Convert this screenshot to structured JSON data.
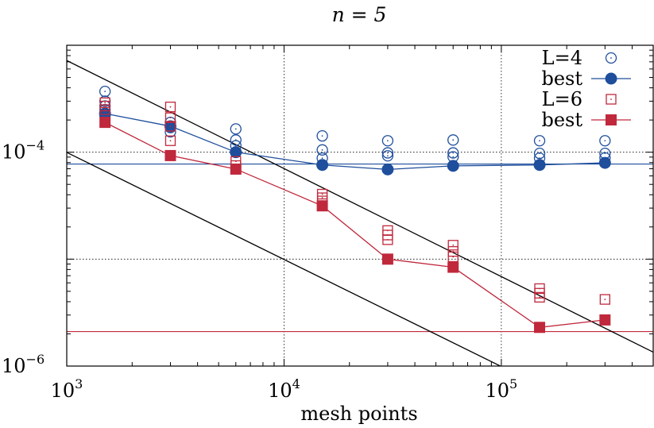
{
  "chart_data": {
    "type": "scatter",
    "title": "n = 5",
    "xlabel": "mesh points",
    "ylabel": "",
    "xscale": "log",
    "yscale": "log",
    "xlim": [
      1000,
      500000
    ],
    "ylim": [
      1e-06,
      0.001
    ],
    "xticks": [
      {
        "value": 1000,
        "base": "10",
        "exp": "3"
      },
      {
        "value": 10000,
        "base": "10",
        "exp": "4"
      },
      {
        "value": 100000,
        "base": "10",
        "exp": "5"
      }
    ],
    "yticks": [
      {
        "value": 1e-06,
        "base": "10",
        "exp": "−6"
      },
      {
        "value": 0.0001,
        "base": "10",
        "exp": "−4"
      }
    ],
    "grid": "dotted, major decades",
    "legend_position": "top-right",
    "series": [
      {
        "name": "L=4",
        "kind": "points",
        "marker": "circle-open",
        "color": "#1f4e9c",
        "points": [
          {
            "x": 1500,
            "y": 0.00037
          },
          {
            "x": 1500,
            "y": 0.0003
          },
          {
            "x": 1500,
            "y": 0.00027
          },
          {
            "x": 1500,
            "y": 0.00025
          },
          {
            "x": 1500,
            "y": 0.00022
          },
          {
            "x": 3000,
            "y": 0.00019
          },
          {
            "x": 3000,
            "y": 0.00017
          },
          {
            "x": 3000,
            "y": 0.000155
          },
          {
            "x": 6000,
            "y": 0.000165
          },
          {
            "x": 6000,
            "y": 0.00013
          },
          {
            "x": 6000,
            "y": 0.000115
          },
          {
            "x": 15000,
            "y": 0.000142
          },
          {
            "x": 15000,
            "y": 0.000105
          },
          {
            "x": 15000,
            "y": 8.8e-05
          },
          {
            "x": 30000,
            "y": 0.000128
          },
          {
            "x": 30000,
            "y": 9.85e-05
          },
          {
            "x": 30000,
            "y": 9.25e-05
          },
          {
            "x": 60000,
            "y": 0.00013
          },
          {
            "x": 60000,
            "y": 9.85e-05
          },
          {
            "x": 60000,
            "y": 9.05e-05
          },
          {
            "x": 150000,
            "y": 0.000128
          },
          {
            "x": 150000,
            "y": 9.75e-05
          },
          {
            "x": 150000,
            "y": 8.8e-05
          },
          {
            "x": 300000,
            "y": 0.000128
          },
          {
            "x": 300000,
            "y": 9.75e-05
          },
          {
            "x": 300000,
            "y": 8.85e-05
          }
        ]
      },
      {
        "name": "best",
        "kind": "line-marker",
        "marker": "circle-filled",
        "color": "#1f4e9c",
        "points": [
          {
            "x": 1500,
            "y": 0.00023
          },
          {
            "x": 3000,
            "y": 0.000175
          },
          {
            "x": 6000,
            "y": 0.0001
          },
          {
            "x": 15000,
            "y": 7.6e-05
          },
          {
            "x": 30000,
            "y": 6.9e-05
          },
          {
            "x": 60000,
            "y": 7.45e-05
          },
          {
            "x": 150000,
            "y": 7.6e-05
          },
          {
            "x": 300000,
            "y": 7.95e-05
          }
        ]
      },
      {
        "name": "L=6",
        "kind": "points",
        "marker": "square-open",
        "color": "#c0283c",
        "points": [
          {
            "x": 1500,
            "y": 0.00029
          },
          {
            "x": 1500,
            "y": 0.00027
          },
          {
            "x": 1500,
            "y": 0.00025
          },
          {
            "x": 3000,
            "y": 0.000265
          },
          {
            "x": 3000,
            "y": 0.00021
          },
          {
            "x": 3000,
            "y": 0.000175
          },
          {
            "x": 3000,
            "y": 0.000128
          },
          {
            "x": 6000,
            "y": 8.2e-05
          },
          {
            "x": 6000,
            "y": 7.5e-05
          },
          {
            "x": 15000,
            "y": 4.05e-05
          },
          {
            "x": 15000,
            "y": 3.75e-05
          },
          {
            "x": 15000,
            "y": 3.5e-05
          },
          {
            "x": 30000,
            "y": 1.85e-05
          },
          {
            "x": 30000,
            "y": 1.68e-05
          },
          {
            "x": 30000,
            "y": 1.52e-05
          },
          {
            "x": 60000,
            "y": 1.35e-05
          },
          {
            "x": 60000,
            "y": 1.18e-05
          },
          {
            "x": 60000,
            "y": 1.05e-05
          },
          {
            "x": 150000,
            "y": 5.3e-06
          },
          {
            "x": 150000,
            "y": 4.8e-06
          },
          {
            "x": 150000,
            "y": 4.4e-06
          },
          {
            "x": 300000,
            "y": 4.2e-06
          }
        ]
      },
      {
        "name": "best",
        "kind": "line-marker",
        "marker": "square-filled",
        "color": "#c0283c",
        "points": [
          {
            "x": 1500,
            "y": 0.00019
          },
          {
            "x": 3000,
            "y": 9.3e-05
          },
          {
            "x": 6000,
            "y": 6.95e-05
          },
          {
            "x": 15000,
            "y": 3.15e-05
          },
          {
            "x": 30000,
            "y": 1e-05
          },
          {
            "x": 60000,
            "y": 8.4e-06
          },
          {
            "x": 150000,
            "y": 2.3e-06
          },
          {
            "x": 300000,
            "y": 2.7e-06
          }
        ]
      }
    ],
    "reference_lines": [
      {
        "kind": "horizontal",
        "y": 7.75e-05,
        "color": "#1f4e9c"
      },
      {
        "kind": "horizontal",
        "y": 2.1e-06,
        "color": "#c0283c"
      },
      {
        "kind": "slope",
        "from": {
          "x": 1000,
          "y": 0.00072
        },
        "to": {
          "x": 500000,
          "y": 1.35e-06
        },
        "color": "#000000"
      },
      {
        "kind": "slope",
        "from": {
          "x": 1000,
          "y": 9.95e-05
        },
        "to": {
          "x": 100000,
          "y": 9.9e-07
        },
        "color": "#000000"
      }
    ]
  }
}
